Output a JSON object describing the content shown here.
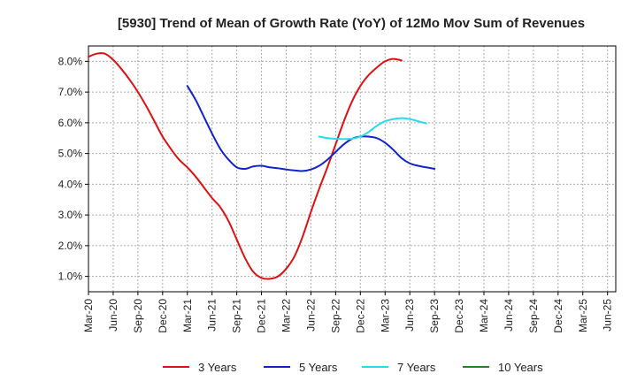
{
  "chart_data": {
    "type": "line",
    "title": "[5930]  Trend of Mean of Growth Rate (YoY) of 12Mo Mov Sum of Revenues",
    "xlabel": "",
    "ylabel": "",
    "ylim": [
      0.5,
      8.5
    ],
    "y_ticks": [
      1.0,
      2.0,
      3.0,
      4.0,
      5.0,
      6.0,
      7.0,
      8.0
    ],
    "y_tick_labels": [
      "1.0%",
      "2.0%",
      "3.0%",
      "4.0%",
      "5.0%",
      "6.0%",
      "7.0%",
      "8.0%"
    ],
    "x_tick_labels": [
      "Mar-20",
      "Jun-20",
      "Sep-20",
      "Dec-20",
      "Mar-21",
      "Jun-21",
      "Sep-21",
      "Dec-21",
      "Mar-22",
      "Jun-22",
      "Sep-22",
      "Dec-22",
      "Mar-23",
      "Jun-23",
      "Sep-23",
      "Dec-23",
      "Mar-24",
      "Jun-24",
      "Sep-24",
      "Dec-24",
      "Mar-25",
      "Jun-25"
    ],
    "grid": true,
    "legend_position": "bottom",
    "series": [
      {
        "name": "3 Years",
        "color": "#dd1111",
        "start_index": 0,
        "values": [
          8.15,
          8.25,
          8.25,
          8.05,
          7.75,
          7.4,
          7.0,
          6.55,
          6.05,
          5.55,
          5.15,
          4.8,
          4.55,
          4.25,
          3.9,
          3.55,
          3.25,
          2.8,
          2.2,
          1.6,
          1.15,
          0.95,
          0.92,
          1.0,
          1.25,
          1.65,
          2.3,
          3.1,
          3.85,
          4.55,
          5.3,
          6.05,
          6.7,
          7.2,
          7.55,
          7.8,
          8.0,
          8.08,
          8.03
        ]
      },
      {
        "name": "5 Years",
        "color": "#1122cc",
        "start_index": 12,
        "values": [
          7.2,
          6.75,
          6.2,
          5.65,
          5.15,
          4.8,
          4.55,
          4.5,
          4.58,
          4.6,
          4.55,
          4.52,
          4.48,
          4.45,
          4.43,
          4.48,
          4.6,
          4.8,
          5.05,
          5.3,
          5.48,
          5.55,
          5.55,
          5.5,
          5.35,
          5.12,
          4.85,
          4.68,
          4.6,
          4.55,
          4.5
        ]
      },
      {
        "name": "7 Years",
        "color": "#22ddee",
        "start_index": 28,
        "values": [
          5.55,
          5.5,
          5.48,
          5.47,
          5.48,
          5.55,
          5.7,
          5.9,
          6.05,
          6.12,
          6.15,
          6.12,
          6.05,
          5.98
        ]
      },
      {
        "name": "10 Years",
        "color": "#228822",
        "start_index": 0,
        "values": []
      }
    ]
  }
}
